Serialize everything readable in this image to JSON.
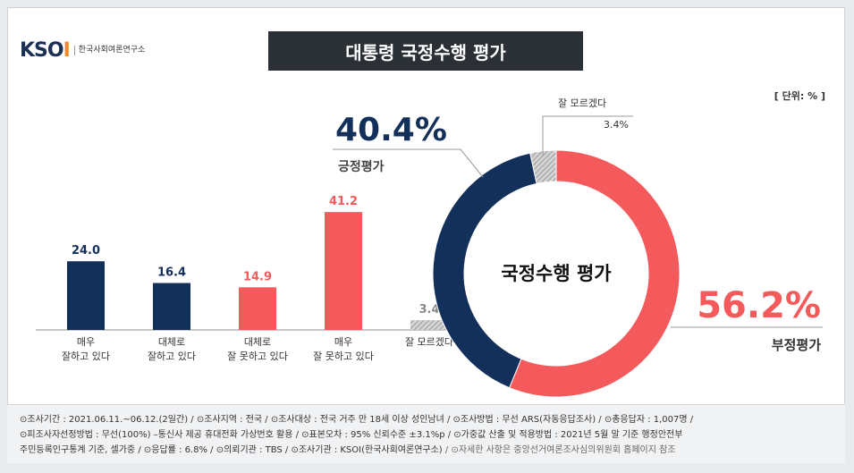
{
  "logo": {
    "word_main": "KSO",
    "word_end": "I",
    "org_name": "한국사회여론연구소"
  },
  "title": "대통령 국정수행 평가",
  "unit": "[ 단위: % ]",
  "chart_data": [
    {
      "type": "bar",
      "categories": [
        [
          "매우",
          "잘하고 있다"
        ],
        [
          "대체로",
          "잘하고 있다"
        ],
        [
          "대체로",
          "잘 못하고 있다"
        ],
        [
          "매우",
          "잘 못하고 있다"
        ],
        [
          "잘 모르겠다"
        ]
      ],
      "values": [
        24.0,
        16.4,
        14.9,
        41.2,
        3.4
      ],
      "labels": [
        "24.0",
        "16.4",
        "14.9",
        "41.2",
        "3.4"
      ],
      "colors": [
        "#13305a",
        "#13305a",
        "#f45a5b",
        "#f45a5b",
        "#b0b0b0"
      ],
      "label_colors": [
        "#13305a",
        "#13305a",
        "#f45a5b",
        "#f45a5b",
        "#888888"
      ],
      "ylim": [
        0,
        50
      ]
    },
    {
      "type": "pie",
      "center_label": "국정수행 평가",
      "slices": [
        {
          "name": "부정평가",
          "value": 56.2,
          "label": "56.2%",
          "color": "#f45a5b"
        },
        {
          "name": "긍정평가",
          "value": 40.4,
          "label": "40.4%",
          "color": "#13305a"
        },
        {
          "name": "잘 모르겠다",
          "value": 3.4,
          "label": "3.4%",
          "color": "#b0b0b0"
        }
      ]
    }
  ],
  "footer": {
    "line1": "⊙조사기간 : 2021.06.11.~06.12.(2일간)  / ⊙조사지역 : 전국 / ⊙조사대상 : 전국 거주 만 18세 이상 성인남녀 / ⊙조사방법 : 무선 ARS(자동응답조사) / ⊙총응답자 : 1,007명 /",
    "line2": "⊙피조사자선정방법 : 무선(100%) –통신사 제공 휴대전화 가상번호 활용 / ⊙표본오차 : 95% 신뢰수준 ±3.1%p / ⊙가중값 산출 및 적용방법 : 2021년 5월 말 기준 행정안전부",
    "line3": "주민등록인구통계 기준, 셀가중 / ⊙응답률 : 6.8% / ⊙의뢰기관 : TBS / ⊙조사기관 : KSOI(한국사회여론연구소)",
    "line3_muted": " / ⊙자세한 사항은 중앙선거여론조사심의위원회 홈페이지 참조"
  }
}
